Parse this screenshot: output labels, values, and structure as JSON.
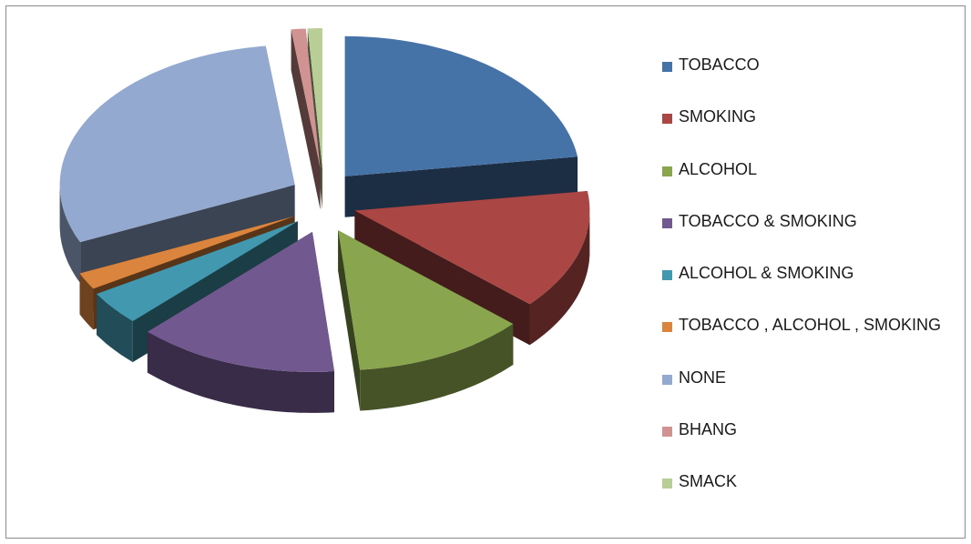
{
  "chart_data": {
    "type": "pie",
    "style": "3d-exploded",
    "legend_position": "right",
    "title": "",
    "slices": [
      {
        "label": "TOBACCO",
        "value": 23,
        "color": "#4572A7"
      },
      {
        "label": "SMOKING",
        "value": 14,
        "color": "#AA4643"
      },
      {
        "label": "ALCOHOL",
        "value": 12,
        "color": "#89A54E"
      },
      {
        "label": "TOBACCO & SMOKING",
        "value": 14,
        "color": "#71588F"
      },
      {
        "label": "ALCOHOL & SMOKING",
        "value": 4,
        "color": "#4198AF"
      },
      {
        "label": "TOBACCO , ALCOHOL , SMOKING",
        "value": 2,
        "color": "#DB843D"
      },
      {
        "label": "NONE",
        "value": 30,
        "color": "#93A9CF"
      },
      {
        "label": "BHANG",
        "value": 1,
        "color": "#D19392"
      },
      {
        "label": "SMACK",
        "value": 1,
        "color": "#B9CD96"
      }
    ]
  }
}
